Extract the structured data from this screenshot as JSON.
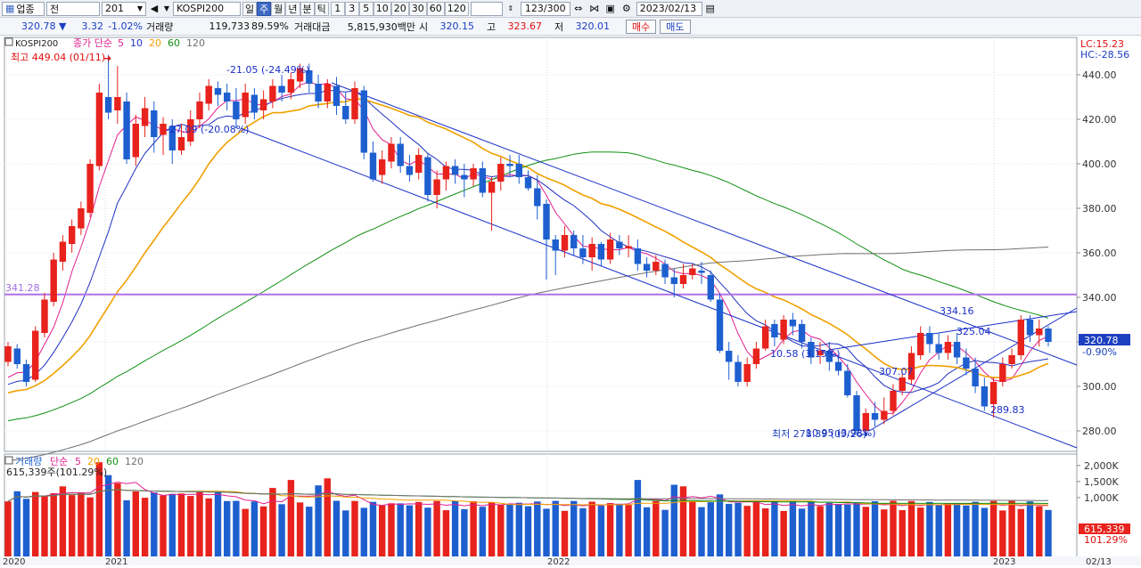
{
  "toolbar": {
    "market_icon": "grid-icon",
    "market_label": "업종",
    "all_label": "전",
    "code": "201",
    "sound_icon": "speaker-icon",
    "index_name": "KOSPI200",
    "period_buttons": [
      "일",
      "주",
      "월",
      "년",
      "분",
      "틱"
    ],
    "active_period": "주",
    "interval_buttons": [
      "1",
      "3",
      "5",
      "10",
      "20",
      "30",
      "60",
      "120"
    ],
    "count": "123/300",
    "date": "2023/02/13"
  },
  "infobar": {
    "price": "320.78",
    "change": "3.32",
    "change_pct": "-1.02%",
    "volume_label": "거래량",
    "volume": "119,733",
    "volume_pct": "89.59%",
    "amount_label": "거래대금",
    "amount": "5,815,930백만",
    "open_label": "시",
    "open": "320.15",
    "high_label": "고",
    "high": "323.67",
    "low_label": "저",
    "low": "320.01",
    "buy_label": "매수",
    "sell_label": "매도"
  },
  "chart": {
    "legend_name": "KOSPI200",
    "legend_ma_label": "종가 단순",
    "legend_ma": [
      "5",
      "10",
      "20",
      "60",
      "120"
    ],
    "legend_ma_colors": [
      "#e0208f",
      "#2030c0",
      "#f0a000",
      "#109010",
      "#707070"
    ],
    "max_label": "최고 449.04 (01/11)",
    "min_label": "최저 278.39 (09/26)",
    "lc_label": "LC:15.23",
    "hc_label": "HC:-28.56",
    "hline_label": "341.28",
    "price_tag": "320.78",
    "price_tag_pct": "-0.90%",
    "annotations": [
      "-21.05 (-24.49%)",
      "-27.09 (-20.08%)",
      "10.58 (3.15%)",
      "307.07",
      "334.16",
      "325.04",
      "289.83",
      "10.95 (3.93%)"
    ],
    "y_ticks": [
      "440.00",
      "420.00",
      "400.00",
      "380.00",
      "360.00",
      "340.00",
      "320.00",
      "300.00",
      "280.00"
    ],
    "colors": {
      "up": "#e8221c",
      "down": "#1e5fd0",
      "channel": "#1a2fc8",
      "hline": "#b070e8"
    }
  },
  "volume": {
    "legend_name": "거래량",
    "legend_ma_label": "단순",
    "legend_ma": [
      "5",
      "20",
      "60",
      "120"
    ],
    "legend_ma_colors": [
      "#e0208f",
      "#f0a000",
      "#109010",
      "#707070"
    ],
    "current_label": "615,339주(101.29%)",
    "y_ticks": [
      "2,000K",
      "1,500K",
      "1,000K"
    ],
    "tag": "615,339",
    "tag_pct": "101.29%"
  },
  "xaxis": {
    "labels": [
      "2020",
      "2021",
      "2022",
      "2023",
      "02/13"
    ]
  }
}
